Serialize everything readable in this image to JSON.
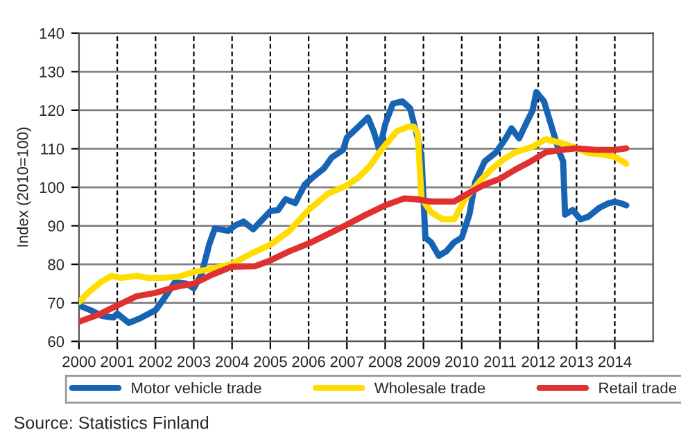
{
  "chart_data": {
    "type": "line",
    "ylabel": "Index (2010=100)",
    "xlim": [
      2000,
      2015
    ],
    "xticks": [
      2000,
      2001,
      2002,
      2003,
      2004,
      2005,
      2006,
      2007,
      2008,
      2009,
      2010,
      2011,
      2012,
      2013,
      2014
    ],
    "ylim": [
      60,
      140
    ],
    "yticks": [
      60,
      70,
      80,
      90,
      100,
      110,
      120,
      130,
      140
    ],
    "grid": true,
    "legend": "bottom",
    "marker": "none",
    "line_style": "solid",
    "annotations": [
      "Source: Statistics Finland"
    ],
    "series": [
      {
        "name": "Motor vehicle trade",
        "color": "#1864b4",
        "x": [
          2000.0,
          2000.3,
          2000.6,
          2000.9,
          2001.0,
          2001.3,
          2001.6,
          2002.0,
          2002.2,
          2002.5,
          2002.8,
          2003.0,
          2003.2,
          2003.4,
          2003.55,
          2003.9,
          2004.1,
          2004.3,
          2004.55,
          2004.8,
          2005.0,
          2005.2,
          2005.4,
          2005.65,
          2005.9,
          2006.1,
          2006.4,
          2006.6,
          2006.9,
          2007.0,
          2007.3,
          2007.55,
          2007.7,
          2007.85,
          2008.0,
          2008.2,
          2008.45,
          2008.65,
          2008.85,
          2008.95,
          2009.05,
          2009.2,
          2009.4,
          2009.6,
          2009.8,
          2010.0,
          2010.2,
          2010.35,
          2010.6,
          2010.9,
          2011.15,
          2011.3,
          2011.5,
          2011.7,
          2011.85,
          2011.95,
          2012.15,
          2012.35,
          2012.55,
          2012.65,
          2012.7,
          2012.9,
          2013.1,
          2013.3,
          2013.6,
          2013.85,
          2014.0,
          2014.15,
          2014.3
        ],
        "values": [
          69.3,
          68.1,
          66.6,
          66.2,
          67.2,
          64.8,
          66,
          68.1,
          70.8,
          75.3,
          75,
          73.8,
          77.4,
          85.1,
          89.3,
          88.7,
          90.2,
          91.1,
          89.1,
          91.7,
          93.8,
          94.1,
          96.9,
          95.9,
          100.7,
          102.5,
          104.9,
          107.7,
          109.7,
          112.9,
          115.7,
          118.1,
          114.5,
          109.7,
          116.3,
          121.7,
          122.3,
          120.5,
          112.7,
          107.9,
          86.9,
          85.7,
          82.2,
          83.4,
          85.7,
          86.9,
          92.9,
          101.3,
          106.7,
          109.1,
          112.7,
          115.3,
          112.7,
          116.9,
          119.9,
          124.7,
          122.3,
          115.7,
          109.1,
          106.7,
          92.9,
          94.1,
          91.7,
          92.3,
          94.7,
          95.9,
          96.2,
          95.9,
          95.3
        ]
      },
      {
        "name": "Wholesale trade",
        "color": "#ffdd00",
        "x": [
          2000.0,
          2000.3,
          2000.6,
          2000.85,
          2001.1,
          2001.5,
          2001.8,
          2002.2,
          2002.6,
          2003.0,
          2003.5,
          2004.0,
          2004.5,
          2005.0,
          2005.5,
          2006.0,
          2006.5,
          2007.0,
          2007.3,
          2007.6,
          2007.9,
          2008.1,
          2008.3,
          2008.6,
          2008.75,
          2008.85,
          2008.95,
          2009.2,
          2009.5,
          2009.8,
          2010.1,
          2010.5,
          2010.8,
          2011.1,
          2011.4,
          2011.8,
          2012.2,
          2012.6,
          2012.9,
          2013.3,
          2013.7,
          2014.0,
          2014.3
        ],
        "values": [
          70.2,
          73.2,
          75.6,
          77,
          76.5,
          77,
          76.5,
          76.5,
          76.8,
          78,
          78.9,
          80.1,
          82.8,
          85.1,
          88.7,
          94.1,
          98.3,
          100.5,
          102.5,
          105.5,
          109.7,
          112.1,
          114.5,
          115.7,
          115.7,
          114,
          97.1,
          93.5,
          91.7,
          91.7,
          97.1,
          101.9,
          104.9,
          107.3,
          109.1,
          110.3,
          112.5,
          111.5,
          110.5,
          108.9,
          108.5,
          107.9,
          106.1
        ]
      },
      {
        "name": "Retail trade",
        "color": "#e03131",
        "x": [
          2000.0,
          2000.5,
          2001.0,
          2001.5,
          2002.0,
          2002.5,
          2003.0,
          2003.5,
          2004.0,
          2004.6,
          2005.0,
          2005.5,
          2006.0,
          2006.5,
          2007.0,
          2007.5,
          2008.0,
          2008.5,
          2008.8,
          2009.2,
          2009.8,
          2010.2,
          2010.6,
          2011.0,
          2011.4,
          2011.8,
          2012.2,
          2012.6,
          2013.0,
          2013.5,
          2014.0,
          2014.3
        ],
        "values": [
          65.1,
          66.9,
          69.3,
          71.7,
          72.6,
          74.1,
          75,
          77.4,
          79.4,
          79.5,
          81,
          83.4,
          85.4,
          87.8,
          90.3,
          92.9,
          95.3,
          97.1,
          96.9,
          96.3,
          96.3,
          98.6,
          100.7,
          102.2,
          104.6,
          106.7,
          109.1,
          109.7,
          110.1,
          109.7,
          109.7,
          110.1
        ]
      }
    ]
  }
}
